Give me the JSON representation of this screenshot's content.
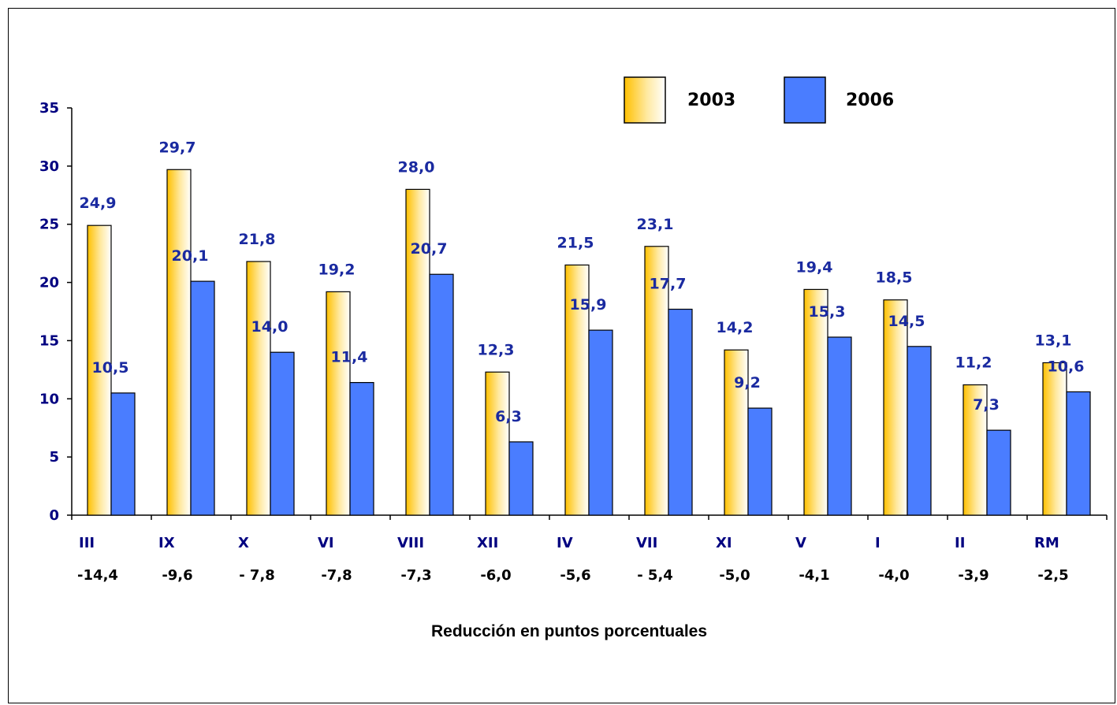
{
  "chart_data": {
    "type": "bar",
    "title": "",
    "xlabel": "Reducción en puntos porcentuales",
    "ylabel": "",
    "ylim": [
      0,
      35
    ],
    "yticks": [
      "0",
      "5",
      "10",
      "15",
      "20",
      "25",
      "30",
      "35"
    ],
    "categories": [
      "III",
      "IX",
      "X",
      "VI",
      "VIII",
      "XII",
      "IV",
      "VII",
      "XI",
      "V",
      "I",
      "II",
      "RM"
    ],
    "reductions": [
      "-14,4",
      "-9,6",
      "- 7,8",
      "-7,8",
      "-7,3",
      "-6,0",
      "-5,6",
      "- 5,4",
      "-5,0",
      "-4,1",
      "-4,0",
      "-3,9",
      "-2,5"
    ],
    "series": [
      {
        "name": "2003",
        "values": [
          24.9,
          29.7,
          21.8,
          19.2,
          28.0,
          12.3,
          21.5,
          23.1,
          14.2,
          19.4,
          18.5,
          11.2,
          13.1
        ],
        "labels": [
          "24,9",
          "29,7",
          "21,8",
          "19,2",
          "28,0",
          "12,3",
          "21,5",
          "23,1",
          "14,2",
          "19,4",
          "18,5",
          "11,2",
          "13,1"
        ],
        "color": "#ffcc33"
      },
      {
        "name": "2006",
        "values": [
          10.5,
          20.1,
          14.0,
          11.4,
          20.7,
          6.3,
          15.9,
          17.7,
          9.2,
          15.3,
          14.5,
          7.3,
          10.6
        ],
        "labels": [
          "10,5",
          "20,1",
          "14,0",
          "11,4",
          "20,7",
          "6,3",
          "15,9",
          "17,7",
          "9,2",
          "15,3",
          "14,5",
          "7,3",
          "10,6"
        ],
        "color": "#4a7dff"
      }
    ],
    "legend": {
      "position": "top-right"
    },
    "grid": false
  }
}
